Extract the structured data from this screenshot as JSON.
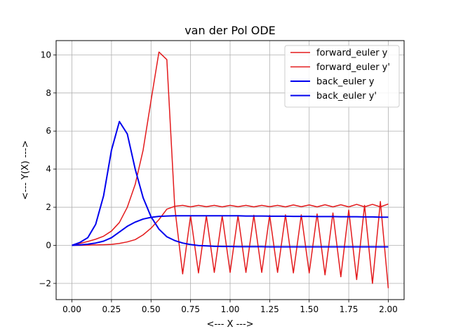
{
  "chart_data": {
    "type": "line",
    "title": "van der Pol ODE",
    "xlabel": "<--- X --->",
    "ylabel": "<--- Y(X) --->",
    "xlim": [
      -0.1,
      2.1
    ],
    "ylim": [
      -2.85,
      10.75
    ],
    "xticks": [
      0.0,
      0.25,
      0.5,
      0.75,
      1.0,
      1.25,
      1.5,
      1.75,
      2.0
    ],
    "xtick_labels": [
      "0.00",
      "0.25",
      "0.50",
      "0.75",
      "1.00",
      "1.25",
      "1.50",
      "1.75",
      "2.00"
    ],
    "yticks": [
      -2,
      0,
      2,
      4,
      6,
      8,
      10
    ],
    "ytick_labels": [
      "−2",
      "0",
      "2",
      "4",
      "6",
      "8",
      "10"
    ],
    "grid": true,
    "legend_position": "top-right",
    "series": [
      {
        "name": "forward_euler y",
        "color": "#e31a1c",
        "x": [
          0.0,
          0.05,
          0.1,
          0.15,
          0.2,
          0.25,
          0.3,
          0.35,
          0.4,
          0.45,
          0.5,
          0.55,
          0.6,
          0.65,
          0.7,
          0.75,
          0.8,
          0.85,
          0.9,
          0.95,
          1.0,
          1.05,
          1.1,
          1.15,
          1.2,
          1.25,
          1.3,
          1.35,
          1.4,
          1.45,
          1.5,
          1.55,
          1.6,
          1.65,
          1.7,
          1.75,
          1.8,
          1.85,
          1.9,
          1.95,
          2.0
        ],
        "y": [
          0.0,
          0.0,
          0.01,
          0.02,
          0.03,
          0.05,
          0.1,
          0.18,
          0.3,
          0.55,
          0.9,
          1.35,
          1.9,
          2.05,
          2.1,
          2.02,
          2.1,
          2.03,
          2.1,
          2.02,
          2.1,
          2.03,
          2.1,
          2.02,
          2.1,
          2.03,
          2.1,
          2.02,
          2.12,
          2.03,
          2.12,
          2.02,
          2.13,
          2.02,
          2.13,
          2.02,
          2.15,
          2.02,
          2.15,
          2.02,
          2.17
        ]
      },
      {
        "name": "forward_euler y'",
        "color": "#e31a1c",
        "x": [
          0.0,
          0.05,
          0.1,
          0.15,
          0.2,
          0.25,
          0.3,
          0.35,
          0.4,
          0.45,
          0.5,
          0.55,
          0.6,
          0.65,
          0.7,
          0.75,
          0.8,
          0.85,
          0.9,
          0.95,
          1.0,
          1.05,
          1.1,
          1.15,
          1.2,
          1.25,
          1.3,
          1.35,
          1.4,
          1.45,
          1.5,
          1.55,
          1.6,
          1.65,
          1.7,
          1.75,
          1.8,
          1.85,
          1.9,
          1.95,
          2.0
        ],
        "y": [
          0.0,
          0.1,
          0.2,
          0.32,
          0.48,
          0.75,
          1.2,
          2.0,
          3.2,
          5.0,
          7.6,
          10.15,
          9.75,
          2.0,
          -1.5,
          1.55,
          -1.45,
          1.55,
          -1.42,
          1.55,
          -1.42,
          1.56,
          -1.42,
          1.58,
          -1.42,
          1.58,
          -1.42,
          1.6,
          -1.45,
          1.6,
          -1.45,
          1.65,
          -1.55,
          1.7,
          -1.65,
          1.85,
          -1.8,
          2.1,
          -2.0,
          2.3,
          -2.25
        ]
      },
      {
        "name": "back_euler y",
        "color": "#0000ee",
        "x": [
          0.0,
          0.05,
          0.1,
          0.15,
          0.2,
          0.25,
          0.3,
          0.35,
          0.4,
          0.45,
          0.5,
          0.55,
          0.6,
          0.65,
          0.7,
          0.75,
          0.8,
          0.85,
          0.9,
          0.95,
          1.0,
          1.05,
          1.1,
          1.15,
          1.2,
          1.25,
          1.3,
          1.35,
          1.4,
          1.45,
          1.5,
          1.55,
          1.6,
          1.65,
          1.7,
          1.75,
          1.8,
          1.85,
          1.9,
          1.95,
          2.0
        ],
        "y": [
          0.0,
          0.02,
          0.06,
          0.12,
          0.22,
          0.4,
          0.7,
          1.0,
          1.22,
          1.38,
          1.47,
          1.52,
          1.54,
          1.55,
          1.55,
          1.55,
          1.55,
          1.55,
          1.55,
          1.55,
          1.55,
          1.55,
          1.54,
          1.54,
          1.54,
          1.53,
          1.53,
          1.53,
          1.52,
          1.52,
          1.52,
          1.51,
          1.51,
          1.51,
          1.5,
          1.5,
          1.5,
          1.49,
          1.49,
          1.48,
          1.48
        ]
      },
      {
        "name": "back_euler y'",
        "color": "#0000ee",
        "x": [
          0.0,
          0.05,
          0.1,
          0.15,
          0.2,
          0.25,
          0.3,
          0.35,
          0.4,
          0.45,
          0.5,
          0.55,
          0.6,
          0.65,
          0.7,
          0.75,
          0.8,
          0.85,
          0.9,
          0.95,
          1.0,
          1.05,
          1.1,
          1.15,
          1.2,
          1.25,
          1.3,
          1.35,
          1.4,
          1.45,
          1.5,
          1.55,
          1.6,
          1.65,
          1.7,
          1.75,
          1.8,
          1.85,
          1.9,
          1.95,
          2.0
        ],
        "y": [
          0.0,
          0.15,
          0.4,
          1.1,
          2.6,
          5.0,
          6.5,
          5.85,
          4.0,
          2.5,
          1.5,
          0.85,
          0.45,
          0.25,
          0.12,
          0.04,
          -0.01,
          -0.03,
          -0.05,
          -0.06,
          -0.06,
          -0.07,
          -0.07,
          -0.07,
          -0.07,
          -0.08,
          -0.08,
          -0.08,
          -0.08,
          -0.08,
          -0.08,
          -0.08,
          -0.08,
          -0.08,
          -0.08,
          -0.08,
          -0.08,
          -0.08,
          -0.08,
          -0.08,
          -0.08
        ]
      }
    ]
  }
}
